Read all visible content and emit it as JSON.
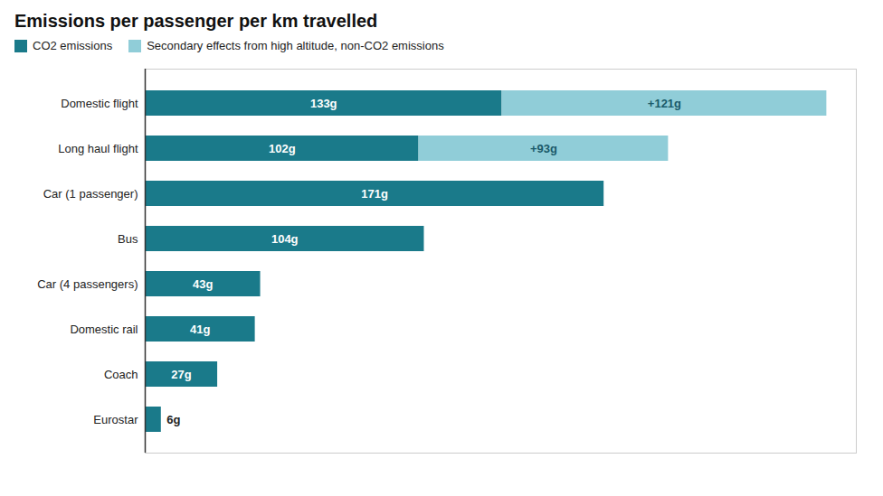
{
  "chart_data": {
    "type": "bar",
    "title": "Emissions per passenger per km travelled",
    "orientation": "horizontal",
    "stacked": true,
    "categories": [
      "Domestic flight",
      "Long haul flight",
      "Car (1 passenger)",
      "Bus",
      "Car (4 passengers)",
      "Domestic rail",
      "Coach",
      "Eurostar"
    ],
    "series": [
      {
        "name": "CO2 emissions",
        "color": "#1a7a8a",
        "values": [
          133,
          102,
          171,
          104,
          43,
          41,
          27,
          6
        ],
        "value_labels": [
          "133g",
          "102g",
          "171g",
          "104g",
          "43g",
          "41g",
          "27g",
          "6g"
        ]
      },
      {
        "name": "Secondary effects from high altitude, non-CO2 emissions",
        "color": "#90cdd8",
        "values": [
          121,
          93,
          0,
          0,
          0,
          0,
          0,
          0
        ],
        "value_labels": [
          "+121g",
          "+93g",
          null,
          null,
          null,
          null,
          null,
          null
        ]
      }
    ],
    "xlim": [
      0,
      265
    ],
    "xticks": [],
    "data_labels": true,
    "tick_labels": "y",
    "grid": false,
    "legend": "upper left"
  }
}
